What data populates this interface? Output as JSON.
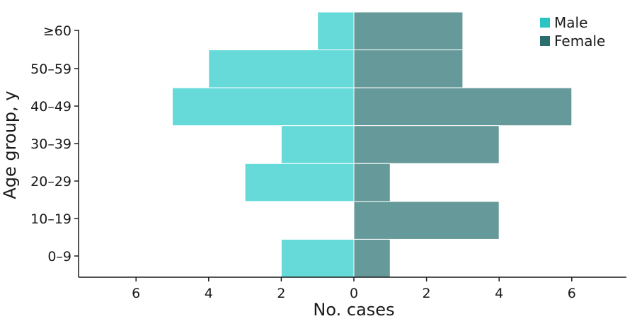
{
  "chart_data": {
    "type": "bar",
    "orientation": "horizontal-diverging",
    "categories": [
      "≥60",
      "50–59",
      "40–49",
      "30–39",
      "20–29",
      "10–19",
      "0–9"
    ],
    "series": [
      {
        "name": "Male",
        "values": [
          1,
          4,
          5,
          2,
          3,
          0,
          2
        ],
        "direction": "left",
        "color": "#66d9d9"
      },
      {
        "name": "Female",
        "values": [
          3,
          3,
          6,
          4,
          1,
          4,
          1
        ],
        "direction": "right",
        "color": "#669999"
      }
    ],
    "xlabel": "No. cases",
    "ylabel": "Age group, y",
    "xlim": [
      -7.5,
      7.5
    ],
    "xticks": [
      -6,
      -4,
      -2,
      0,
      2,
      4,
      6
    ],
    "xtick_labels": [
      "6",
      "4",
      "2",
      "0",
      "2",
      "4",
      "6"
    ],
    "grid": false,
    "legend_position": "top-right",
    "legend_swatch_colors": [
      "#2bc4c4",
      "#2a6e6e"
    ]
  }
}
